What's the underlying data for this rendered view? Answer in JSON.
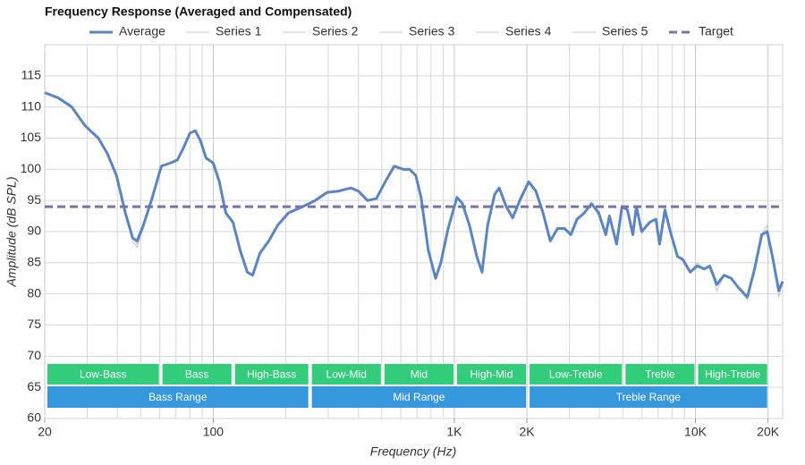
{
  "chart_data": {
    "type": "line",
    "title": "Frequency Response (Averaged and Compensated)",
    "x_label": "Frequency (Hz)",
    "y_label": "Amplitude (dB SPL)",
    "log_x": true,
    "grid": true,
    "legend": "top",
    "xlim": [
      20,
      23000
    ],
    "ylim": [
      60,
      120
    ],
    "xticks": [
      20,
      100,
      {
        "value": 1000,
        "label": "1K"
      },
      {
        "value": 2000,
        "label": "2K"
      },
      {
        "value": 10000,
        "label": "10K"
      },
      {
        "value": 20000,
        "label": "20K"
      }
    ],
    "xgrid": [
      30,
      40,
      50,
      60,
      70,
      80,
      90,
      200,
      300,
      400,
      500,
      600,
      700,
      800,
      900,
      3000,
      4000,
      5000,
      6000,
      7000,
      8000,
      9000
    ],
    "yticks": [
      60,
      65,
      70,
      75,
      80,
      85,
      90,
      95,
      100,
      105,
      110,
      115
    ],
    "x": [
      20,
      22.7,
      25.9,
      29.4,
      33.4,
      36.4,
      39.7,
      43.2,
      46.3,
      48.3,
      51.3,
      55.9,
      60.9,
      66.3,
      71,
      75.4,
      80,
      84.3,
      88.7,
      93.4,
      100,
      106,
      112.7,
      120.7,
      129.3,
      138.4,
      145.8,
      156,
      170,
      185,
      205,
      235,
      265,
      297,
      331,
      373,
      400,
      436,
      475,
      517,
      563,
      614,
      652,
      692,
      728,
      780,
      836,
      879,
      942,
      1026,
      1080,
      1156,
      1239,
      1303,
      1374,
      1470,
      1535,
      1643,
      1746,
      1868,
      2035,
      2179,
      2334,
      2500,
      2680,
      2866,
      3042,
      3229,
      3460,
      3706,
      3969,
      4249,
      4397,
      4711,
      4959,
      5224,
      5500,
      5689,
      5987,
      6462,
      6859,
      7101,
      7474,
      7870,
      8430,
      8876,
      9510,
      10170,
      10890,
      11460,
      12270,
      13150,
      14080,
      15080,
      16430,
      17590,
      18840,
      19830,
      20870,
      22170,
      23000
    ],
    "series": [
      {
        "name": "Average",
        "color": "#5b85c2",
        "style": "bold",
        "values": [
          112.3,
          111.5,
          110,
          107,
          105,
          102.5,
          99,
          93,
          89,
          88.5,
          91,
          95.5,
          100.5,
          101,
          101.5,
          103.5,
          105.8,
          106.2,
          104.5,
          101.8,
          101,
          98,
          93,
          91.5,
          87,
          83.5,
          83,
          86.5,
          88.5,
          91,
          93,
          94,
          95,
          96.3,
          96.5,
          97,
          96.5,
          95,
          95.3,
          98,
          100.5,
          100,
          100,
          99,
          95.5,
          87,
          82.5,
          85,
          90.5,
          95.5,
          94.5,
          91,
          86,
          83.5,
          91,
          96,
          97,
          94,
          92.2,
          95,
          98,
          96.5,
          93,
          88.5,
          90.5,
          90.5,
          89.5,
          92,
          93,
          94.5,
          93,
          89.5,
          92.5,
          88,
          94,
          93.5,
          89.5,
          94,
          90,
          91.5,
          92,
          88,
          93.5,
          90,
          86,
          85.5,
          83.5,
          84.5,
          84,
          84.5,
          81.5,
          83,
          82.5,
          81,
          79.5,
          84,
          89.5,
          90,
          86,
          80.5,
          82
        ]
      },
      {
        "name": "Series 1",
        "color": "#c4c6cc",
        "style": "thin",
        "values": [
          112.4,
          111.6,
          110,
          107.1,
          105,
          102.4,
          99,
          93.2,
          89,
          88,
          91,
          95.6,
          100.4,
          101,
          101.6,
          103.5,
          105.9,
          106.3,
          104.4,
          101.8,
          101,
          98.2,
          93,
          91.5,
          87,
          83.4,
          83,
          86.6,
          88.5,
          91,
          93,
          94,
          95,
          96.3,
          96.6,
          97,
          96.5,
          95,
          95.3,
          98,
          100.5,
          100,
          100,
          99,
          95.5,
          87,
          82.3,
          85,
          90.5,
          95.5,
          94.5,
          91,
          86,
          83.2,
          91,
          96,
          97,
          94,
          92.2,
          95,
          98,
          96.5,
          93,
          88.5,
          90.5,
          90.5,
          89.5,
          92,
          93,
          94.5,
          93,
          89.5,
          92.5,
          88,
          94,
          93.5,
          89.5,
          94,
          90,
          91.5,
          92,
          88,
          93.5,
          90,
          86,
          85.5,
          83.5,
          84.5,
          84,
          84.5,
          81.5,
          83,
          82.5,
          81,
          79.5,
          84,
          89.5,
          90.2,
          86,
          80.5,
          82
        ]
      },
      {
        "name": "Series 2",
        "color": "#c4c6cc",
        "style": "thin",
        "values": [
          112.2,
          111.4,
          110,
          107,
          105,
          102.5,
          99,
          92.8,
          88.5,
          87.5,
          90.5,
          95.5,
          100.5,
          101,
          101.5,
          103.5,
          105.8,
          106.2,
          104.5,
          101.8,
          101,
          98,
          93,
          91.5,
          87,
          83.5,
          83,
          86.5,
          88.5,
          91,
          93,
          94,
          95,
          96.3,
          96.5,
          97,
          96.5,
          95,
          95.3,
          98,
          100.5,
          100,
          100,
          99,
          95.5,
          87,
          82.5,
          85,
          90.5,
          95.5,
          94.5,
          91,
          86,
          83.5,
          91,
          96,
          97,
          94,
          92.2,
          95,
          98,
          96.5,
          93,
          88.5,
          90.5,
          90.5,
          89.5,
          92,
          93,
          94.5,
          93,
          89.5,
          92.5,
          88,
          94,
          93.5,
          89.5,
          94,
          90,
          91.5,
          92,
          88,
          93.5,
          90,
          86,
          85.5,
          83.5,
          84.5,
          84,
          84.5,
          81.5,
          83,
          82.5,
          81,
          79.5,
          84,
          89.5,
          90,
          86.5,
          80.5,
          82
        ]
      },
      {
        "name": "Series 3",
        "color": "#c4c6cc",
        "style": "thin",
        "values": [
          112.3,
          111.5,
          110,
          107,
          105,
          102.5,
          99,
          93,
          89,
          88.5,
          91,
          95.5,
          100.5,
          101,
          101.5,
          103.5,
          105.8,
          106.2,
          104.5,
          101.8,
          101,
          98,
          93,
          91.5,
          87,
          83.5,
          83,
          86.5,
          88.5,
          91,
          93,
          94,
          95,
          96.3,
          96.5,
          97,
          96.5,
          95,
          95.3,
          98,
          100.5,
          100,
          100,
          99,
          95.5,
          87,
          82.5,
          85,
          90.5,
          95.5,
          94.5,
          91,
          86,
          83.5,
          91,
          96,
          97,
          94,
          92.2,
          95,
          98,
          96.5,
          93,
          88.5,
          90.5,
          90.5,
          89.5,
          92,
          93,
          94.5,
          93,
          89.5,
          92.5,
          88,
          94,
          93.5,
          89.5,
          94,
          90,
          91.5,
          92,
          88,
          93.5,
          90,
          86,
          85.5,
          83.5,
          85,
          84,
          84.5,
          80.5,
          83,
          82.5,
          81,
          79.5,
          84,
          89.5,
          90,
          86,
          80.5,
          82
        ]
      },
      {
        "name": "Series 4",
        "color": "#c4c6cc",
        "style": "thin",
        "values": [
          112.3,
          111.5,
          110,
          107,
          105,
          102.5,
          99,
          93,
          89,
          88.5,
          91,
          95.5,
          100.5,
          101,
          101.5,
          103.5,
          105.8,
          106.2,
          104.5,
          101.8,
          101,
          98,
          93,
          91.5,
          87,
          83.5,
          83,
          86.5,
          88.5,
          91,
          93,
          94,
          95,
          96.3,
          96.5,
          97,
          96.5,
          95,
          95.3,
          98,
          100.5,
          100,
          100,
          99,
          95.5,
          87,
          82.5,
          85,
          90.5,
          95.5,
          94.5,
          91,
          86,
          83.5,
          91,
          96,
          97,
          94,
          92.2,
          95,
          98,
          96.5,
          93,
          88.5,
          90.5,
          90.5,
          89.5,
          92,
          93,
          94.5,
          93,
          89.5,
          92.5,
          88,
          94,
          93.5,
          89.5,
          94,
          90,
          91.5,
          92,
          88,
          93.5,
          90,
          86,
          85.5,
          83.5,
          84.5,
          84,
          84.5,
          81.5,
          83,
          82.5,
          81,
          79,
          84,
          89.5,
          91,
          86,
          80.5,
          82
        ]
      },
      {
        "name": "Series 5",
        "color": "#c4c6cc",
        "style": "thin",
        "values": [
          112.3,
          111.5,
          110,
          107,
          105,
          102.5,
          99,
          93,
          89,
          88.5,
          91,
          95.5,
          100.5,
          101,
          101.5,
          103.5,
          105.8,
          106.2,
          104.5,
          101.8,
          101,
          98,
          93,
          91.5,
          87,
          83.5,
          83,
          86.5,
          88.5,
          91,
          93,
          94,
          95,
          96.3,
          96.5,
          97,
          96.5,
          95,
          95.3,
          98,
          100.5,
          100,
          100,
          99,
          95.5,
          87,
          82.5,
          85,
          90.5,
          95.5,
          94.5,
          91,
          86,
          83.5,
          91,
          96,
          97,
          94,
          92.2,
          95,
          98,
          96.5,
          93,
          88.5,
          90.5,
          90.5,
          89.5,
          92,
          93,
          94.5,
          93,
          89.5,
          92.5,
          88,
          94,
          93.5,
          89.5,
          94,
          90,
          91.5,
          92,
          88,
          93.5,
          90,
          86,
          85.5,
          83.5,
          84.5,
          84,
          84.5,
          81.5,
          83,
          82.5,
          81,
          79.5,
          84,
          89.5,
          90,
          86,
          79.5,
          82
        ]
      },
      {
        "name": "Target",
        "color": "#7474aa",
        "style": "dashed",
        "x": [
          20,
          23000
        ],
        "values": [
          94,
          94
        ]
      }
    ],
    "bands": [
      {
        "label": "Low-Bass",
        "range": [
          20,
          60
        ]
      },
      {
        "label": "Bass",
        "range": [
          60,
          120
        ]
      },
      {
        "label": "High-Bass",
        "range": [
          120,
          250
        ]
      },
      {
        "label": "Low-Mid",
        "range": [
          250,
          500
        ]
      },
      {
        "label": "Mid",
        "range": [
          500,
          1000
        ]
      },
      {
        "label": "High-Mid",
        "range": [
          1000,
          2000
        ]
      },
      {
        "label": "Low-Treble",
        "range": [
          2000,
          5000
        ]
      },
      {
        "label": "Treble",
        "range": [
          5000,
          10000
        ]
      },
      {
        "label": "High-Treble",
        "range": [
          10000,
          20000
        ]
      }
    ],
    "band_color": "#33cc7a",
    "ranges": [
      {
        "label": "Bass Range",
        "range": [
          20,
          250
        ]
      },
      {
        "label": "Mid Range",
        "range": [
          250,
          2000
        ]
      },
      {
        "label": "Treble Range",
        "range": [
          2000,
          20000
        ]
      }
    ],
    "range_color": "#3598dc"
  }
}
